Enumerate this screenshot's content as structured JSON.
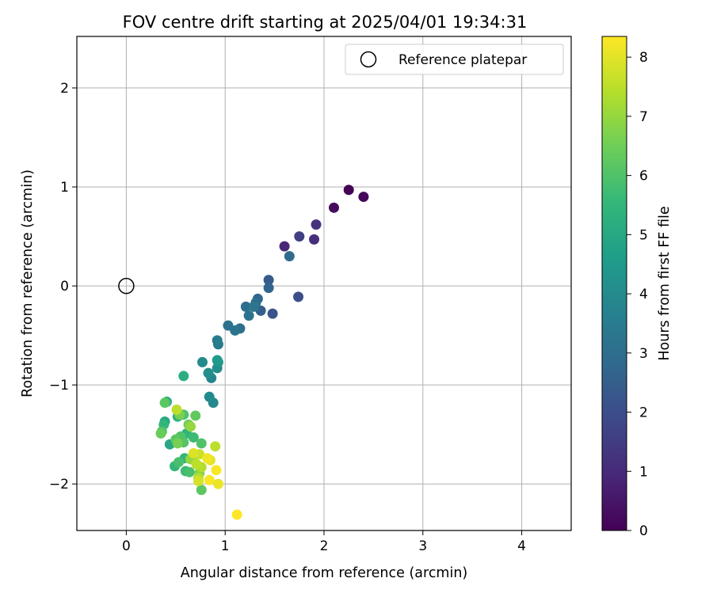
{
  "chart_data": {
    "type": "scatter",
    "title": "FOV centre drift starting at 2025/04/01 19:34:31",
    "xlabel": "Angular distance from reference (arcmin)",
    "ylabel": "Rotation from reference (arcmin)",
    "xlim": [
      -0.5,
      4.5
    ],
    "ylim": [
      -2.47,
      2.52
    ],
    "xticks": [
      0,
      1,
      2,
      3,
      4
    ],
    "xtick_labels": [
      "0",
      "1",
      "2",
      "3",
      "4"
    ],
    "yticks": [
      -2,
      -1,
      0,
      1,
      2
    ],
    "ytick_labels": [
      "−2",
      "−1",
      "0",
      "1",
      "2"
    ],
    "grid": true,
    "legend": {
      "position": "top-right",
      "entries": [
        "Reference platepar"
      ]
    },
    "reference_point": {
      "x": 0,
      "y": 0,
      "marker": "open-circle"
    },
    "colorbar": {
      "label": "Hours from first FF file",
      "colormap": "viridis",
      "range": [
        0,
        8.35
      ],
      "ticks": [
        0,
        1,
        2,
        3,
        4,
        5,
        6,
        7,
        8
      ],
      "tick_labels": [
        "0",
        "1",
        "2",
        "3",
        "4",
        "5",
        "6",
        "7",
        "8"
      ],
      "colors": [
        "#440154",
        "#482878",
        "#3e4989",
        "#31688e",
        "#26828e",
        "#1f9e89",
        "#35b779",
        "#6ece58",
        "#b5de2b",
        "#fde725"
      ]
    },
    "points": [
      {
        "x": 2.25,
        "y": 0.97,
        "hours": 0.05
      },
      {
        "x": 2.4,
        "y": 0.9,
        "hours": 0.15
      },
      {
        "x": 2.1,
        "y": 0.79,
        "hours": 0.25
      },
      {
        "x": 1.92,
        "y": 0.62,
        "hours": 1.2
      },
      {
        "x": 1.75,
        "y": 0.5,
        "hours": 1.6
      },
      {
        "x": 1.9,
        "y": 0.47,
        "hours": 1.1
      },
      {
        "x": 1.6,
        "y": 0.4,
        "hours": 0.9
      },
      {
        "x": 1.65,
        "y": 0.3,
        "hours": 2.9
      },
      {
        "x": 1.44,
        "y": 0.06,
        "hours": 2.4
      },
      {
        "x": 1.44,
        "y": -0.02,
        "hours": 2.7
      },
      {
        "x": 1.74,
        "y": -0.11,
        "hours": 2.0
      },
      {
        "x": 1.33,
        "y": -0.13,
        "hours": 2.8
      },
      {
        "x": 1.31,
        "y": -0.17,
        "hours": 3.0
      },
      {
        "x": 1.21,
        "y": -0.21,
        "hours": 3.0
      },
      {
        "x": 1.29,
        "y": -0.21,
        "hours": 3.3
      },
      {
        "x": 1.36,
        "y": -0.25,
        "hours": 2.5
      },
      {
        "x": 1.48,
        "y": -0.28,
        "hours": 2.2
      },
      {
        "x": 1.24,
        "y": -0.3,
        "hours": 3.2
      },
      {
        "x": 1.03,
        "y": -0.4,
        "hours": 3.1
      },
      {
        "x": 1.15,
        "y": -0.43,
        "hours": 3.0
      },
      {
        "x": 1.1,
        "y": -0.45,
        "hours": 3.2
      },
      {
        "x": 0.92,
        "y": -0.55,
        "hours": 3.5
      },
      {
        "x": 0.93,
        "y": -0.59,
        "hours": 3.4
      },
      {
        "x": 0.92,
        "y": -0.75,
        "hours": 4.5
      },
      {
        "x": 0.77,
        "y": -0.77,
        "hours": 4.0
      },
      {
        "x": 0.93,
        "y": -0.77,
        "hours": 4.3
      },
      {
        "x": 0.92,
        "y": -0.83,
        "hours": 4.1
      },
      {
        "x": 0.83,
        "y": -0.88,
        "hours": 4.1
      },
      {
        "x": 0.58,
        "y": -0.91,
        "hours": 5.2
      },
      {
        "x": 0.86,
        "y": -0.93,
        "hours": 3.8
      },
      {
        "x": 0.84,
        "y": -1.12,
        "hours": 4.0
      },
      {
        "x": 0.88,
        "y": -1.18,
        "hours": 3.9
      },
      {
        "x": 0.41,
        "y": -1.17,
        "hours": 5.1
      },
      {
        "x": 0.39,
        "y": -1.18,
        "hours": 6.2
      },
      {
        "x": 0.51,
        "y": -1.25,
        "hours": 7.5
      },
      {
        "x": 0.54,
        "y": -1.3,
        "hours": 6.6
      },
      {
        "x": 0.58,
        "y": -1.3,
        "hours": 6.0
      },
      {
        "x": 0.7,
        "y": -1.31,
        "hours": 6.3
      },
      {
        "x": 0.52,
        "y": -1.32,
        "hours": 5.3
      },
      {
        "x": 0.39,
        "y": -1.37,
        "hours": 5.0
      },
      {
        "x": 0.38,
        "y": -1.4,
        "hours": 5.5
      },
      {
        "x": 0.63,
        "y": -1.4,
        "hours": 6.5
      },
      {
        "x": 0.65,
        "y": -1.42,
        "hours": 7.0
      },
      {
        "x": 0.36,
        "y": -1.47,
        "hours": 6.0
      },
      {
        "x": 0.35,
        "y": -1.49,
        "hours": 6.4
      },
      {
        "x": 0.61,
        "y": -1.49,
        "hours": 5.4
      },
      {
        "x": 0.55,
        "y": -1.52,
        "hours": 6.0
      },
      {
        "x": 0.68,
        "y": -1.53,
        "hours": 5.7
      },
      {
        "x": 0.5,
        "y": -1.55,
        "hours": 6.2
      },
      {
        "x": 0.44,
        "y": -1.6,
        "hours": 5.0
      },
      {
        "x": 0.52,
        "y": -1.59,
        "hours": 6.6
      },
      {
        "x": 0.58,
        "y": -1.58,
        "hours": 6.1
      },
      {
        "x": 0.76,
        "y": -1.59,
        "hours": 6.0
      },
      {
        "x": 0.9,
        "y": -1.62,
        "hours": 7.5
      },
      {
        "x": 0.68,
        "y": -1.69,
        "hours": 7.9
      },
      {
        "x": 0.74,
        "y": -1.7,
        "hours": 7.7
      },
      {
        "x": 0.67,
        "y": -1.73,
        "hours": 6.8
      },
      {
        "x": 0.59,
        "y": -1.74,
        "hours": 5.5
      },
      {
        "x": 0.65,
        "y": -1.75,
        "hours": 7.0
      },
      {
        "x": 0.82,
        "y": -1.74,
        "hours": 8.2
      },
      {
        "x": 0.85,
        "y": -1.76,
        "hours": 8.0
      },
      {
        "x": 0.53,
        "y": -1.78,
        "hours": 5.9
      },
      {
        "x": 0.71,
        "y": -1.8,
        "hours": 7.5
      },
      {
        "x": 0.49,
        "y": -1.82,
        "hours": 5.5
      },
      {
        "x": 0.76,
        "y": -1.83,
        "hours": 7.4
      },
      {
        "x": 0.6,
        "y": -1.87,
        "hours": 5.7
      },
      {
        "x": 0.64,
        "y": -1.88,
        "hours": 5.9
      },
      {
        "x": 0.91,
        "y": -1.86,
        "hours": 8.3
      },
      {
        "x": 0.74,
        "y": -1.89,
        "hours": 6.8
      },
      {
        "x": 0.73,
        "y": -1.94,
        "hours": 7.4
      },
      {
        "x": 0.73,
        "y": -1.97,
        "hours": 7.8
      },
      {
        "x": 0.84,
        "y": -1.96,
        "hours": 8.3
      },
      {
        "x": 0.93,
        "y": -2.0,
        "hours": 8.1
      },
      {
        "x": 0.76,
        "y": -2.06,
        "hours": 6.2
      },
      {
        "x": 1.12,
        "y": -2.31,
        "hours": 8.35
      }
    ]
  }
}
